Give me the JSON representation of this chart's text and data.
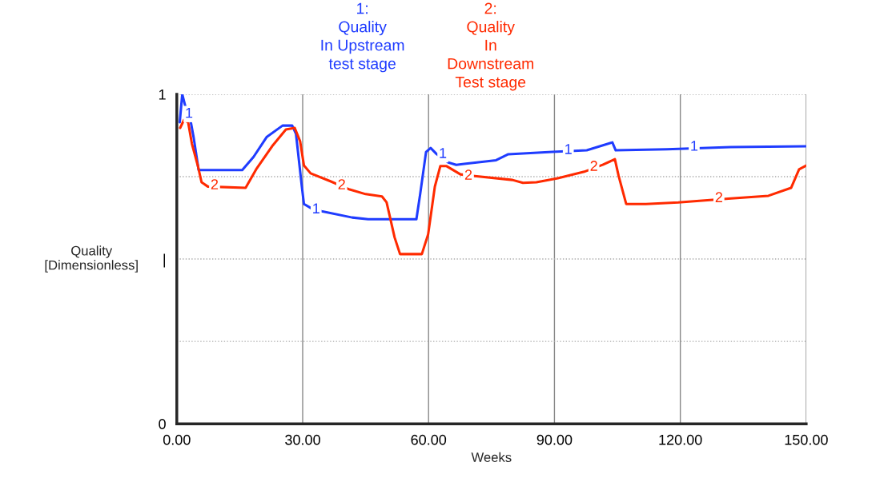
{
  "chart_data": {
    "type": "line",
    "xlabel": "Weeks",
    "ylabel": "Quality\n[Dimensionless]",
    "legend": "top",
    "grid": true,
    "marker": "none",
    "line_style": "solid",
    "xlim": [
      0,
      150
    ],
    "xticks": [
      {
        "value": 0,
        "label": "0.00"
      },
      {
        "value": 30,
        "label": "30.00"
      },
      {
        "value": 60,
        "label": "60.00"
      },
      {
        "value": 90,
        "label": "90.00"
      },
      {
        "value": 120,
        "label": "120.00"
      },
      {
        "value": 150,
        "label": "150.00"
      }
    ],
    "ylim": [
      0,
      1
    ],
    "yticks": [
      0,
      {
        "value": 0.25,
        "label": null
      },
      {
        "value": 0.5,
        "label": "|"
      },
      {
        "value": 0.75,
        "label": null
      },
      1
    ],
    "series": [
      {
        "name": "1:\nQuality\nIn Upstream\ntest stage",
        "color": "#1f3cff",
        "x": [
          0.7,
          1.3,
          2.1,
          2.7,
          4.0,
          5.2,
          15.6,
          18.3,
          21.4,
          25.2,
          27.5,
          28.4,
          29.8,
          30.3,
          31.9,
          34.5,
          41.8,
          45.6,
          57.1,
          58,
          59.4,
          60.5,
          61.8,
          64.7,
          66.6,
          68.5,
          76.1,
          79,
          89.5,
          97.7,
          103.8,
          104.6,
          116.8,
          132,
          150
        ],
        "values": [
          0.915,
          1.0,
          0.96,
          0.96,
          0.87,
          0.77,
          0.77,
          0.81,
          0.87,
          0.905,
          0.905,
          0.88,
          0.72,
          0.667,
          0.655,
          0.645,
          0.626,
          0.621,
          0.621,
          0.697,
          0.825,
          0.837,
          0.82,
          0.793,
          0.786,
          0.789,
          0.8,
          0.818,
          0.825,
          0.83,
          0.854,
          0.83,
          0.833,
          0.84,
          0.842
        ]
      },
      {
        "name": "2:\nQuality\nIn\nDownstream\nTest stage",
        "color": "#ff2a00",
        "x": [
          0.8,
          1.7,
          2.7,
          3.6,
          5.0,
          5.9,
          7.4,
          16.4,
          18.9,
          22.7,
          26,
          28.1,
          29.4,
          30.3,
          31.9,
          36.6,
          41.2,
          45,
          48.9,
          50,
          51.9,
          53.2,
          58.4,
          59.9,
          61.5,
          62.8,
          64.3,
          67.6,
          71,
          80,
          82.5,
          85.7,
          90.8,
          97.1,
          101.5,
          104.4,
          105.3,
          107.1,
          111.8,
          119.5,
          132.1,
          141,
          146.4,
          148.3,
          150
        ],
        "values": [
          0.898,
          0.922,
          0.915,
          0.85,
          0.784,
          0.733,
          0.72,
          0.716,
          0.772,
          0.842,
          0.893,
          0.898,
          0.857,
          0.784,
          0.76,
          0.736,
          0.711,
          0.697,
          0.69,
          0.672,
          0.566,
          0.515,
          0.515,
          0.575,
          0.72,
          0.782,
          0.782,
          0.757,
          0.752,
          0.74,
          0.731,
          0.733,
          0.745,
          0.765,
          0.786,
          0.803,
          0.752,
          0.667,
          0.667,
          0.672,
          0.684,
          0.692,
          0.716,
          0.772,
          0.784
        ]
      }
    ],
    "annotations": [
      {
        "text": "1",
        "x": 2.9,
        "y": 0.94
      },
      {
        "text": "1",
        "x": 33.2,
        "y": 0.65
      },
      {
        "text": "1",
        "x": 63.4,
        "y": 0.818
      },
      {
        "text": "1",
        "x": 93.3,
        "y": 0.83
      },
      {
        "text": "1",
        "x": 123.3,
        "y": 0.84
      },
      {
        "text": "2",
        "x": 9,
        "y": 0.723
      },
      {
        "text": "2",
        "x": 39.3,
        "y": 0.723
      },
      {
        "text": "2",
        "x": 69.5,
        "y": 0.752
      },
      {
        "text": "2",
        "x": 99.4,
        "y": 0.779
      },
      {
        "text": "2",
        "x": 129.2,
        "y": 0.684
      }
    ]
  }
}
